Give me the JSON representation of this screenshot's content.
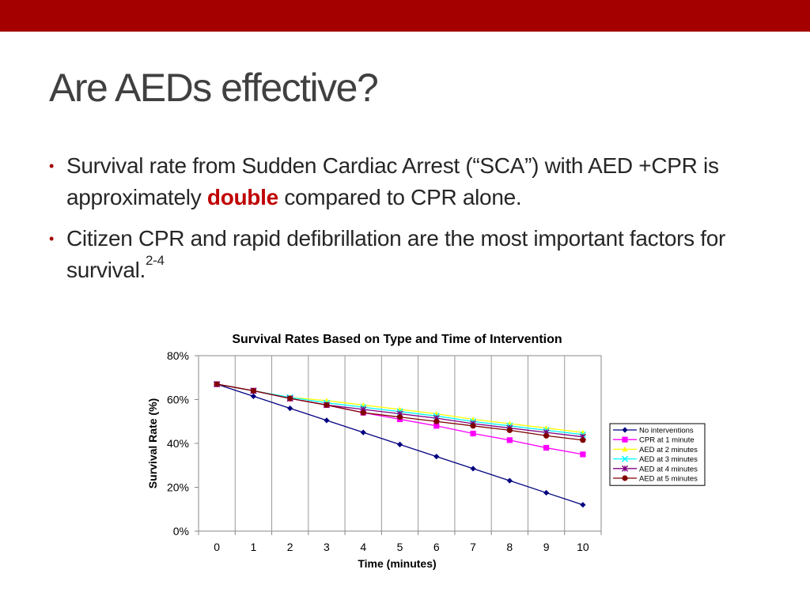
{
  "slide": {
    "title": "Are AEDs effective?",
    "bar_color": "#A50000",
    "emphasis_color": "#C00000",
    "bullets": [
      {
        "text_before": "Survival rate from Sudden Cardiac Arrest (“SCA”) with AED +CPR is approximately ",
        "emphasis": "double",
        "text_after": " compared to CPR alone."
      },
      {
        "text_before": "Citizen CPR and rapid defibrillation are the most important factors for survival.",
        "superscript": "2-4"
      }
    ]
  },
  "chart_data": {
    "type": "line",
    "title": "Survival Rates Based on Type and Time of Intervention",
    "xlabel": "Time (minutes)",
    "ylabel": "Survival Rate (%)",
    "x": [
      0,
      1,
      2,
      3,
      4,
      5,
      6,
      7,
      8,
      9,
      10
    ],
    "y_ticks": [
      "0%",
      "20%",
      "40%",
      "60%",
      "80%"
    ],
    "ylim": [
      0,
      80
    ],
    "grid": "vertical",
    "legend_position": "right",
    "series": [
      {
        "name": "No interventions",
        "color": "#000080",
        "marker": "diamond",
        "values": [
          67,
          61.5,
          56,
          50.5,
          45,
          39.5,
          34,
          28.5,
          23,
          17.5,
          12
        ]
      },
      {
        "name": "CPR at 1 minute",
        "color": "#FF00FF",
        "marker": "square",
        "values": [
          67,
          64,
          60.5,
          57.5,
          54,
          51,
          48,
          44.5,
          41.5,
          38,
          35
        ]
      },
      {
        "name": "AED at 2 minutes",
        "color": "#FFFF00",
        "marker": "triangle",
        "values": [
          67,
          64,
          61,
          59.5,
          57.5,
          55.5,
          53.5,
          51,
          49,
          47,
          45
        ]
      },
      {
        "name": "AED at 3 minutes",
        "color": "#00FFFF",
        "marker": "x",
        "values": [
          67,
          64,
          61,
          58.5,
          56.5,
          54.5,
          52.5,
          50,
          48,
          46,
          44
        ]
      },
      {
        "name": "AED at 4 minutes",
        "color": "#800080",
        "marker": "star",
        "values": [
          67,
          64,
          60.5,
          57.5,
          55.5,
          53.5,
          51.5,
          49,
          47,
          45,
          43
        ]
      },
      {
        "name": "AED at 5 minutes",
        "color": "#800000",
        "marker": "circle",
        "values": [
          67,
          64,
          60.5,
          57.5,
          54,
          52,
          50,
          48,
          46,
          43.5,
          41.5
        ]
      }
    ]
  }
}
